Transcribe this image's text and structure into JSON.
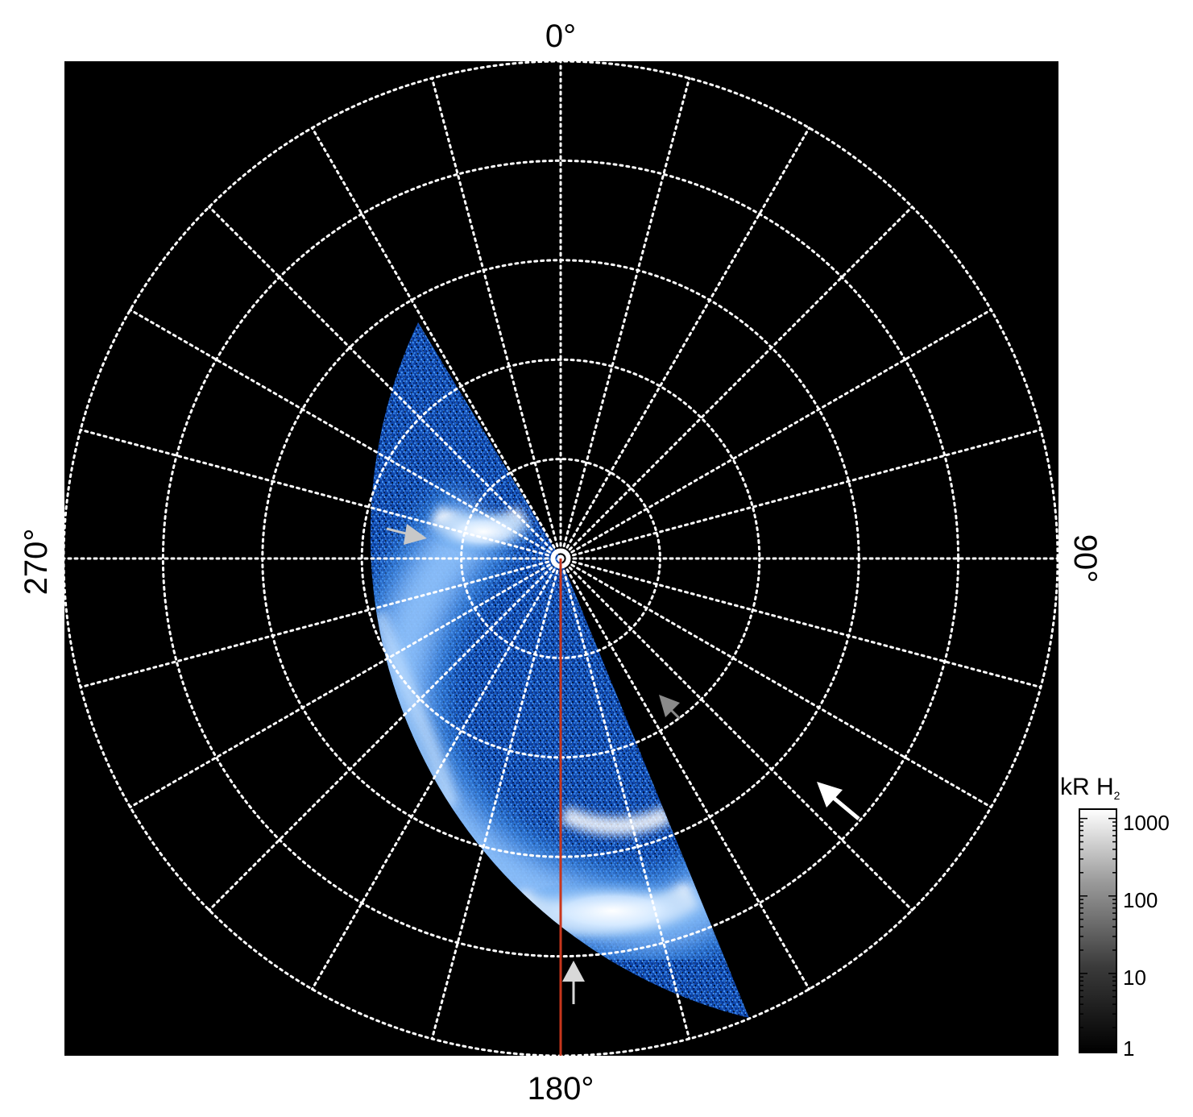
{
  "figure": {
    "labels": {
      "top": "0°",
      "right": "90°",
      "bottom": "180°",
      "left": "270°"
    },
    "colorbar": {
      "title_main": "kR H",
      "title_sub": "2",
      "ticks": [
        "1000",
        "100",
        "10",
        "1"
      ]
    },
    "colors": {
      "background": "#000000",
      "aurora_bright": "#ffffff",
      "aurora_mid": "#3d8fe6",
      "aurora_dark": "#0a3fa0",
      "meridian_line": "#c8361c",
      "grid": "#ffffff",
      "arrow_white": "#ffffff",
      "arrow_light_gray": "#c8c8c8",
      "arrow_gray": "#8a8a8a"
    },
    "arrows": [
      "light-gray-arrow-left",
      "gray-arrow-right",
      "white-arrow-right",
      "light-gray-arrow-bottom"
    ]
  }
}
